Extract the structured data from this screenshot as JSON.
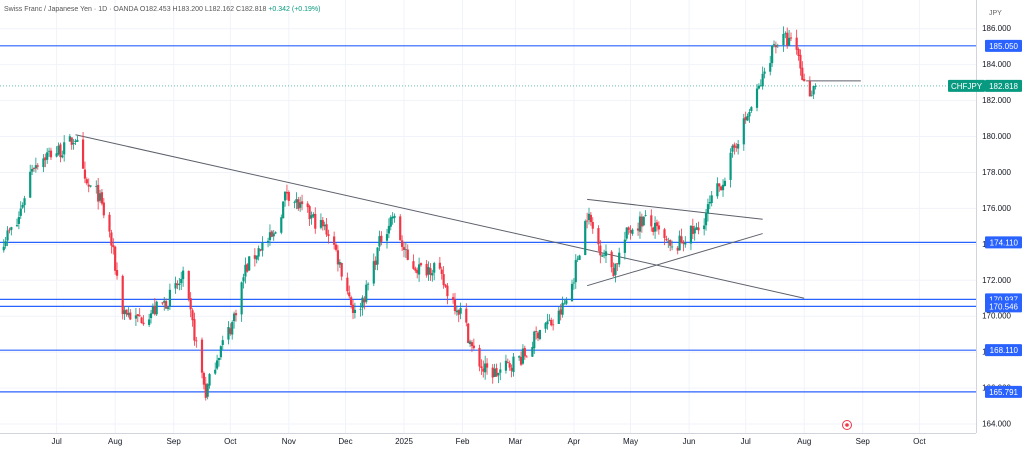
{
  "header": {
    "symbol_name": "Swiss Franc / Japanese Yen",
    "interval": "1D",
    "exchange": "OANDA",
    "open": "O182.453",
    "high": "H183.200",
    "low": "L182.162",
    "close": "C182.818",
    "change": "+0.342 (+0.19%)"
  },
  "currency_label": "JPY",
  "colors": {
    "up": "#089981",
    "down": "#f23645",
    "level_line": "#2962ff",
    "trend_line": "#787b86",
    "grid": "#f0f3fa",
    "ticker_badge": "#089981"
  },
  "chart_data": {
    "type": "candlestick",
    "symbol": "CHFJPY",
    "last_price": 182.818,
    "y_axis": {
      "ylim": [
        163.5,
        187.6
      ],
      "ticks": [
        164.0,
        166.0,
        168.0,
        170.0,
        172.0,
        174.0,
        176.0,
        178.0,
        180.0,
        182.0,
        184.0,
        186.0
      ],
      "tick_labels": [
        "164.000",
        "166.000",
        "168.000",
        "170.000",
        "172.000",
        "174.000",
        "176.000",
        "178.000",
        "180.000",
        "182.000",
        "184.000",
        "186.000"
      ],
      "position": "right"
    },
    "x_axis": {
      "xlim": [
        "2024-06-01",
        "2025-10-31"
      ],
      "ticks": [
        {
          "date": "2024-07-01",
          "label": "Jul"
        },
        {
          "date": "2024-08-01",
          "label": "Aug"
        },
        {
          "date": "2024-09-01",
          "label": "Sep"
        },
        {
          "date": "2024-10-01",
          "label": "Oct"
        },
        {
          "date": "2024-11-01",
          "label": "Nov"
        },
        {
          "date": "2024-12-01",
          "label": "Dec"
        },
        {
          "date": "2025-01-01",
          "label": "2025"
        },
        {
          "date": "2025-02-01",
          "label": "Feb"
        },
        {
          "date": "2025-03-01",
          "label": "Mar"
        },
        {
          "date": "2025-04-01",
          "label": "Apr"
        },
        {
          "date": "2025-05-01",
          "label": "May"
        },
        {
          "date": "2025-06-01",
          "label": "Jun"
        },
        {
          "date": "2025-07-01",
          "label": "Jul"
        },
        {
          "date": "2025-08-01",
          "label": "Aug"
        },
        {
          "date": "2025-09-01",
          "label": "Sep"
        },
        {
          "date": "2025-10-01",
          "label": "Oct"
        }
      ]
    },
    "grid": true,
    "close_path": [
      {
        "date": "2024-06-01",
        "price": 174.1
      },
      {
        "date": "2024-06-10",
        "price": 175.1
      },
      {
        "date": "2024-06-18",
        "price": 178.4
      },
      {
        "date": "2024-06-26",
        "price": 179.0
      },
      {
        "date": "2024-07-05",
        "price": 179.3
      },
      {
        "date": "2024-07-11",
        "price": 180.0
      },
      {
        "date": "2024-07-16",
        "price": 177.3
      },
      {
        "date": "2024-07-23",
        "price": 176.8
      },
      {
        "date": "2024-07-29",
        "price": 174.6
      },
      {
        "date": "2024-08-05",
        "price": 170.4
      },
      {
        "date": "2024-08-12",
        "price": 169.8
      },
      {
        "date": "2024-08-20",
        "price": 170.2
      },
      {
        "date": "2024-08-28",
        "price": 170.8
      },
      {
        "date": "2024-09-06",
        "price": 172.1
      },
      {
        "date": "2024-09-12",
        "price": 169.0
      },
      {
        "date": "2024-09-18",
        "price": 165.7
      },
      {
        "date": "2024-09-24",
        "price": 167.8
      },
      {
        "date": "2024-10-02",
        "price": 169.6
      },
      {
        "date": "2024-10-09",
        "price": 172.6
      },
      {
        "date": "2024-10-17",
        "price": 173.9
      },
      {
        "date": "2024-10-24",
        "price": 174.4
      },
      {
        "date": "2024-10-31",
        "price": 177.0
      },
      {
        "date": "2024-11-07",
        "price": 176.0
      },
      {
        "date": "2024-11-15",
        "price": 175.3
      },
      {
        "date": "2024-11-23",
        "price": 174.6
      },
      {
        "date": "2024-11-30",
        "price": 172.2
      },
      {
        "date": "2024-12-06",
        "price": 170.1
      },
      {
        "date": "2024-12-12",
        "price": 171.4
      },
      {
        "date": "2024-12-20",
        "price": 174.4
      },
      {
        "date": "2024-12-26",
        "price": 175.6
      },
      {
        "date": "2025-01-03",
        "price": 173.0
      },
      {
        "date": "2025-01-10",
        "price": 172.6
      },
      {
        "date": "2025-01-17",
        "price": 172.8
      },
      {
        "date": "2025-01-25",
        "price": 171.2
      },
      {
        "date": "2025-02-01",
        "price": 170.1
      },
      {
        "date": "2025-02-06",
        "price": 168.2
      },
      {
        "date": "2025-02-12",
        "price": 167.0
      },
      {
        "date": "2025-02-20",
        "price": 166.8
      },
      {
        "date": "2025-02-27",
        "price": 167.4
      },
      {
        "date": "2025-03-07",
        "price": 167.9
      },
      {
        "date": "2025-03-15",
        "price": 169.6
      },
      {
        "date": "2025-03-22",
        "price": 169.6
      },
      {
        "date": "2025-03-30",
        "price": 171.3
      },
      {
        "date": "2025-04-04",
        "price": 173.8
      },
      {
        "date": "2025-04-08",
        "price": 175.7
      },
      {
        "date": "2025-04-14",
        "price": 174.0
      },
      {
        "date": "2025-04-22",
        "price": 172.6
      },
      {
        "date": "2025-04-30",
        "price": 174.8
      },
      {
        "date": "2025-05-08",
        "price": 175.4
      },
      {
        "date": "2025-05-16",
        "price": 174.6
      },
      {
        "date": "2025-05-23",
        "price": 173.6
      },
      {
        "date": "2025-05-31",
        "price": 174.5
      },
      {
        "date": "2025-06-06",
        "price": 174.8
      },
      {
        "date": "2025-06-13",
        "price": 176.4
      },
      {
        "date": "2025-06-20",
        "price": 177.8
      },
      {
        "date": "2025-06-27",
        "price": 180.0
      },
      {
        "date": "2025-07-04",
        "price": 181.6
      },
      {
        "date": "2025-07-10",
        "price": 183.2
      },
      {
        "date": "2025-07-16",
        "price": 185.2
      },
      {
        "date": "2025-07-22",
        "price": 185.4
      },
      {
        "date": "2025-07-28",
        "price": 184.9
      },
      {
        "date": "2025-08-02",
        "price": 182.4
      },
      {
        "date": "2025-08-07",
        "price": 182.818
      }
    ],
    "horizontal_levels": [
      {
        "price": 185.05,
        "label": "185.050"
      },
      {
        "price": 174.11,
        "label": "174.110"
      },
      {
        "price": 170.937,
        "label": "170.937"
      },
      {
        "price": 170.546,
        "label": "170.546"
      },
      {
        "price": 168.11,
        "label": "168.110"
      },
      {
        "price": 165.791,
        "label": "165.791"
      }
    ],
    "trendlines": [
      {
        "start": {
          "date": "2024-07-11",
          "price": 180.1
        },
        "end": {
          "date": "2025-08-01",
          "price": 171.0
        }
      },
      {
        "start": {
          "date": "2025-04-08",
          "price": 176.5
        },
        "end": {
          "date": "2025-07-10",
          "price": 175.4
        }
      },
      {
        "start": {
          "date": "2025-04-08",
          "price": 171.7
        },
        "end": {
          "date": "2025-07-10",
          "price": 174.6
        }
      },
      {
        "start": {
          "date": "2025-08-02",
          "price": 183.1
        },
        "end": {
          "date": "2025-08-31",
          "price": 183.1
        }
      }
    ]
  }
}
